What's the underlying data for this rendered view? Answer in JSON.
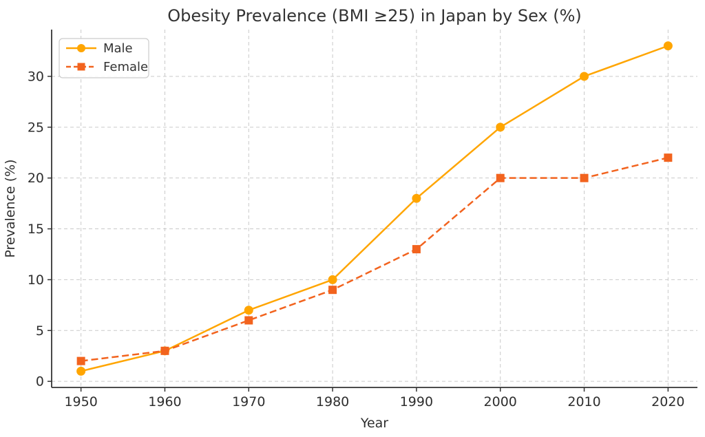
{
  "chart_data": {
    "type": "line",
    "title": "Obesity Prevalence (BMI ≥25) in Japan by Sex (%)",
    "xlabel": "Year",
    "ylabel": "Prevalence (%)",
    "x": [
      1950,
      1960,
      1970,
      1980,
      1990,
      2000,
      2010,
      2020
    ],
    "series": [
      {
        "name": "Male",
        "values": [
          1,
          3,
          7,
          10,
          18,
          25,
          30,
          33
        ],
        "color": "#FFA500",
        "style": "solid",
        "marker": "circle"
      },
      {
        "name": "Female",
        "values": [
          2,
          3,
          6,
          9,
          13,
          20,
          20,
          22
        ],
        "color": "#F2631E",
        "style": "dashed",
        "marker": "square"
      }
    ],
    "xticks": [
      1950,
      1960,
      1970,
      1980,
      1990,
      2000,
      2010,
      2020
    ],
    "yticks": [
      0,
      5,
      10,
      15,
      20,
      25,
      30
    ],
    "xlim": [
      1946.5,
      2023.5
    ],
    "ylim": [
      -0.6,
      34.6
    ],
    "grid": true,
    "legend_position": "upper left",
    "colors": {
      "grid": "#c9c9c9",
      "axis": "#333333",
      "text": "#2e2e2e",
      "background": "#ffffff"
    }
  }
}
